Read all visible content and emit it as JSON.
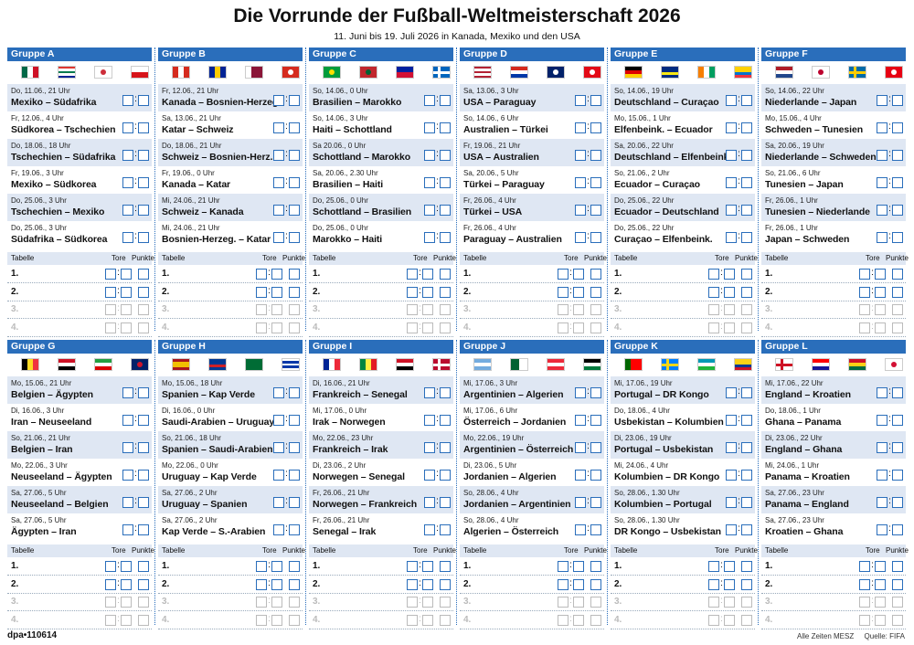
{
  "header": {
    "title": "Die Vorrunde der Fußball-Weltmeisterschaft 2026",
    "subtitle": "11. Juni bis 19. Juli 2026 in Kanada, Mexiko und den USA"
  },
  "score_separator": ":",
  "table_labels": {
    "title": "Tabelle",
    "goals": "Tore",
    "points": "Punkte",
    "ranks": [
      "1.",
      "2.",
      "3.",
      "4."
    ]
  },
  "groups": [
    {
      "name": "Gruppe A",
      "matches": [
        {
          "date": "Do, 11.06., 21 Uhr",
          "teams": "Mexiko – Südafrika"
        },
        {
          "date": "Fr, 12.06., 4 Uhr",
          "teams": "Südkorea – Tschechien"
        },
        {
          "date": "Do, 18.06., 18 Uhr",
          "teams": "Tschechien – Südafrika"
        },
        {
          "date": "Fr, 19.06., 3 Uhr",
          "teams": "Mexiko – Südkorea"
        },
        {
          "date": "Do, 25.06., 3 Uhr",
          "teams": "Tschechien – Mexiko"
        },
        {
          "date": "Do, 25.06., 3 Uhr",
          "teams": "Südafrika – Südkorea"
        }
      ]
    },
    {
      "name": "Gruppe B",
      "matches": [
        {
          "date": "Fr, 12.06., 21 Uhr",
          "teams": "Kanada – Bosnien-Herzeg."
        },
        {
          "date": "Sa, 13.06., 21 Uhr",
          "teams": "Katar – Schweiz"
        },
        {
          "date": "Do, 18.06., 21 Uhr",
          "teams": "Schweiz – Bosnien-Herz."
        },
        {
          "date": "Fr, 19.06., 0 Uhr",
          "teams": "Kanada – Katar"
        },
        {
          "date": "Mi, 24.06., 21 Uhr",
          "teams": "Schweiz – Kanada"
        },
        {
          "date": "Mi, 24.06., 21 Uhr",
          "teams": "Bosnien-Herzeg. – Katar"
        }
      ]
    },
    {
      "name": "Gruppe C",
      "matches": [
        {
          "date": "So, 14.06., 0 Uhr",
          "teams": "Brasilien – Marokko"
        },
        {
          "date": "So, 14.06., 3 Uhr",
          "teams": "Haiti – Schottland"
        },
        {
          "date": "Sa 20.06., 0 Uhr",
          "teams": "Schottland – Marokko"
        },
        {
          "date": "Sa, 20.06., 2.30 Uhr",
          "teams": "Brasilien – Haiti"
        },
        {
          "date": "Do, 25.06., 0 Uhr",
          "teams": "Schottland – Brasilien"
        },
        {
          "date": "Do, 25.06., 0 Uhr",
          "teams": "Marokko – Haiti"
        }
      ]
    },
    {
      "name": "Gruppe D",
      "matches": [
        {
          "date": "Sa, 13.06., 3 Uhr",
          "teams": "USA – Paraguay"
        },
        {
          "date": "So, 14.06., 6 Uhr",
          "teams": "Australien – Türkei"
        },
        {
          "date": "Fr, 19.06., 21 Uhr",
          "teams": "USA – Australien"
        },
        {
          "date": "Sa, 20.06., 5 Uhr",
          "teams": "Türkei – Paraguay"
        },
        {
          "date": "Fr, 26.06., 4 Uhr",
          "teams": "Türkei – USA"
        },
        {
          "date": "Fr, 26.06., 4 Uhr",
          "teams": "Paraguay – Australien"
        }
      ]
    },
    {
      "name": "Gruppe E",
      "matches": [
        {
          "date": "So, 14.06., 19 Uhr",
          "teams": "Deutschland – Curaçao"
        },
        {
          "date": "Mo, 15.06., 1 Uhr",
          "teams": "Elfenbeink. – Ecuador"
        },
        {
          "date": "Sa, 20.06., 22 Uhr",
          "teams": "Deutschland – Elfenbeink."
        },
        {
          "date": "So, 21.06., 2 Uhr",
          "teams": "Ecuador – Curaçao"
        },
        {
          "date": "Do, 25.06., 22 Uhr",
          "teams": "Ecuador – Deutschland"
        },
        {
          "date": "Do, 25.06., 22 Uhr",
          "teams": "Curaçao – Elfenbeink."
        }
      ]
    },
    {
      "name": "Gruppe F",
      "matches": [
        {
          "date": "So, 14.06., 22 Uhr",
          "teams": "Niederlande – Japan"
        },
        {
          "date": "Mo, 15.06., 4 Uhr",
          "teams": "Schweden – Tunesien"
        },
        {
          "date": "Sa, 20.06., 19 Uhr",
          "teams": "Niederlande – Schweden"
        },
        {
          "date": "So, 21.06., 6 Uhr",
          "teams": "Tunesien – Japan"
        },
        {
          "date": "Fr, 26.06., 1 Uhr",
          "teams": "Tunesien – Niederlande"
        },
        {
          "date": "Fr, 26.06., 1 Uhr",
          "teams": "Japan – Schweden"
        }
      ]
    },
    {
      "name": "Gruppe G",
      "matches": [
        {
          "date": "Mo, 15.06., 21 Uhr",
          "teams": "Belgien – Ägypten"
        },
        {
          "date": "Di, 16.06., 3 Uhr",
          "teams": "Iran – Neuseeland"
        },
        {
          "date": "So, 21.06., 21 Uhr",
          "teams": "Belgien – Iran"
        },
        {
          "date": "Mo, 22.06., 3 Uhr",
          "teams": "Neuseeland – Ägypten"
        },
        {
          "date": "Sa, 27.06., 5 Uhr",
          "teams": "Neuseeland – Belgien"
        },
        {
          "date": "Sa, 27.06., 5 Uhr",
          "teams": "Ägypten – Iran"
        }
      ]
    },
    {
      "name": "Gruppe H",
      "matches": [
        {
          "date": "Mo, 15.06., 18 Uhr",
          "teams": "Spanien – Kap Verde"
        },
        {
          "date": "Di, 16.06., 0 Uhr",
          "teams": "Saudi-Arabien – Uruguay"
        },
        {
          "date": "So, 21.06., 18 Uhr",
          "teams": "Spanien – Saudi-Arabien"
        },
        {
          "date": "Mo, 22.06., 0 Uhr",
          "teams": "Uruguay – Kap Verde"
        },
        {
          "date": "Sa, 27.06., 2 Uhr",
          "teams": "Uruguay – Spanien"
        },
        {
          "date": "Sa, 27.06., 2 Uhr",
          "teams": "Kap Verde – S.-Arabien"
        }
      ]
    },
    {
      "name": "Gruppe I",
      "matches": [
        {
          "date": "Di, 16.06., 21 Uhr",
          "teams": "Frankreich – Senegal"
        },
        {
          "date": "Mi, 17.06., 0 Uhr",
          "teams": "Irak – Norwegen"
        },
        {
          "date": "Mo, 22.06., 23 Uhr",
          "teams": "Frankreich – Irak"
        },
        {
          "date": "Di, 23.06., 2 Uhr",
          "teams": "Norwegen – Senegal"
        },
        {
          "date": "Fr, 26.06., 21 Uhr",
          "teams": "Norwegen – Frankreich"
        },
        {
          "date": "Fr, 26.06., 21 Uhr",
          "teams": "Senegal – Irak"
        }
      ]
    },
    {
      "name": "Gruppe J",
      "matches": [
        {
          "date": "Mi, 17.06., 3 Uhr",
          "teams": "Argentinien – Algerien"
        },
        {
          "date": "Mi, 17.06., 6 Uhr",
          "teams": "Österreich – Jordanien"
        },
        {
          "date": "Mo, 22.06., 19 Uhr",
          "teams": "Argentinien – Österreich"
        },
        {
          "date": "Di, 23.06., 5 Uhr",
          "teams": "Jordanien – Algerien"
        },
        {
          "date": "So, 28.06., 4 Uhr",
          "teams": "Jordanien – Argentinien"
        },
        {
          "date": "So, 28.06., 4 Uhr",
          "teams": "Algerien – Österreich"
        }
      ]
    },
    {
      "name": "Gruppe K",
      "matches": [
        {
          "date": "Mi, 17.06., 19 Uhr",
          "teams": "Portugal – DR Kongo"
        },
        {
          "date": "Do, 18.06., 4 Uhr",
          "teams": "Usbekistan – Kolumbien"
        },
        {
          "date": "Di, 23.06., 19 Uhr",
          "teams": "Portugal – Usbekistan"
        },
        {
          "date": "Mi, 24.06., 4 Uhr",
          "teams": "Kolumbien – DR Kongo"
        },
        {
          "date": "So, 28.06., 1.30 Uhr",
          "teams": "Kolumbien – Portugal"
        },
        {
          "date": "So, 28.06., 1.30 Uhr",
          "teams": "DR Kongo – Usbekistan"
        }
      ]
    },
    {
      "name": "Gruppe L",
      "matches": [
        {
          "date": "Mi, 17.06., 22 Uhr",
          "teams": "England – Kroatien"
        },
        {
          "date": "Do, 18.06., 1 Uhr",
          "teams": "Ghana – Panama"
        },
        {
          "date": "Di, 23.06., 22 Uhr",
          "teams": "England – Ghana"
        },
        {
          "date": "Mi, 24.06., 1 Uhr",
          "teams": "Panama – Kroatien"
        },
        {
          "date": "Sa, 27.06., 23 Uhr",
          "teams": "Panama – England"
        },
        {
          "date": "Sa, 27.06., 23 Uhr",
          "teams": "Kroatien – Ghana"
        }
      ]
    }
  ],
  "footer": {
    "id": "dpa•110614",
    "note": "Alle Zeiten MESZ",
    "source": "Quelle: FIFA"
  }
}
